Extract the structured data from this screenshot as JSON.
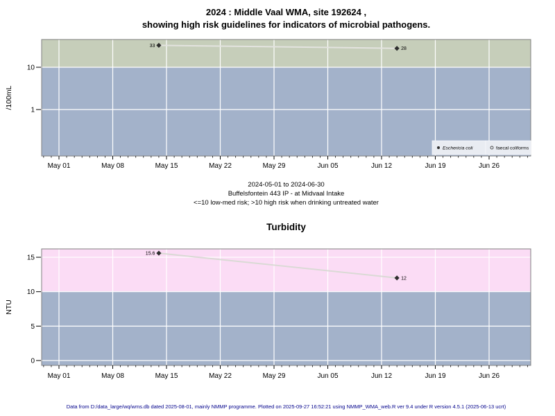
{
  "page": {
    "title_line1": "2024 : Middle Vaal WMA, site 192624 ,",
    "title_line2": "showing high risk guidelines for indicators of microbial pathogens.",
    "subtitle_line1": "2024-05-01 to 2024-06-30",
    "subtitle_line2": "Buffelsfontein 443 IP - at Midvaal Intake",
    "subtitle_line3": "<=10 low-med risk; >10 high risk when drinking untreated water",
    "footer": "Data from D:/data_large/wq/wms.db dated 2025-08-01, mainly NMMP programme. Plotted on 2025-09-27 16:52:21 using NMMP_WMA_web.R ver 9.4 under R version 4.5.1 (2025-06-13 ucrt)"
  },
  "colors": {
    "high_risk_green": "#c6ceba",
    "low_risk_blue": "#a3b2ca",
    "high_risk_pink": "#fbdcf5",
    "gridline": "#ffffff",
    "plot_border": "#7f7f7f",
    "marker": "#2e2e2e",
    "tick": "#000000",
    "legend_background": "#e9ecf2",
    "footer_text": "#00008b"
  },
  "chart_data": [
    {
      "type": "line",
      "title": "",
      "ylabel": "/100mL",
      "yscale": "log",
      "threshold": 10,
      "threshold_note": "<=10 low-med risk; >10 high risk when drinking untreated water",
      "band_above_color": "#c6ceba",
      "band_below_color": "#a3b2ca",
      "line_color": "#e3e3df",
      "x_range_label": "2024-05-01 to 2024-06-30",
      "x_ticks": [
        {
          "day": 0,
          "label": "May 01"
        },
        {
          "day": 7,
          "label": "May 08"
        },
        {
          "day": 14,
          "label": "May 15"
        },
        {
          "day": 21,
          "label": "May 22"
        },
        {
          "day": 28,
          "label": "May 29"
        },
        {
          "day": 35,
          "label": "Jun 05"
        },
        {
          "day": 42,
          "label": "Jun 12"
        },
        {
          "day": 49,
          "label": "Jun 19"
        },
        {
          "day": 56,
          "label": "Jun 26"
        }
      ],
      "y_ticks": [
        {
          "value": 10,
          "label": "10"
        },
        {
          "value": 1,
          "label": "1"
        }
      ],
      "series": [
        {
          "name": "Eschericia coli",
          "points": [
            {
              "date": "2024-05-14",
              "value": 33,
              "label": "33"
            },
            {
              "date": "2024-06-14",
              "value": 28,
              "label": "28"
            }
          ]
        },
        {
          "name": "faecal coliforms",
          "points": []
        }
      ],
      "legend": [
        {
          "label": "Eschericia coli",
          "marker": "filled-point",
          "italic": true
        },
        {
          "label": "faecal coliforms",
          "marker": "open-circle",
          "italic": false
        }
      ],
      "legend_position": "bottom-right"
    },
    {
      "type": "line",
      "title": "Turbidity",
      "ylabel": "NTU",
      "yscale": "linear",
      "ylim": [
        -0.6,
        16.2
      ],
      "threshold": 10,
      "band_above_color": "#fbdcf5",
      "band_below_color": "#a3b2ca",
      "line_color": "#dadad5",
      "x_ticks": [
        {
          "day": 0,
          "label": "May 01"
        },
        {
          "day": 7,
          "label": "May 08"
        },
        {
          "day": 14,
          "label": "May 15"
        },
        {
          "day": 21,
          "label": "May 22"
        },
        {
          "day": 28,
          "label": "May 29"
        },
        {
          "day": 35,
          "label": "Jun 05"
        },
        {
          "day": 42,
          "label": "Jun 12"
        },
        {
          "day": 49,
          "label": "Jun 19"
        },
        {
          "day": 56,
          "label": "Jun 26"
        }
      ],
      "y_ticks": [
        {
          "value": 0,
          "label": "0"
        },
        {
          "value": 5,
          "label": "5"
        },
        {
          "value": 10,
          "label": "10"
        },
        {
          "value": 15,
          "label": "15"
        }
      ],
      "series": [
        {
          "name": "Turbidity",
          "points": [
            {
              "date": "2024-05-14",
              "value": 15.6,
              "label": "15.6"
            },
            {
              "date": "2024-06-14",
              "value": 12,
              "label": "12"
            }
          ]
        }
      ]
    }
  ]
}
